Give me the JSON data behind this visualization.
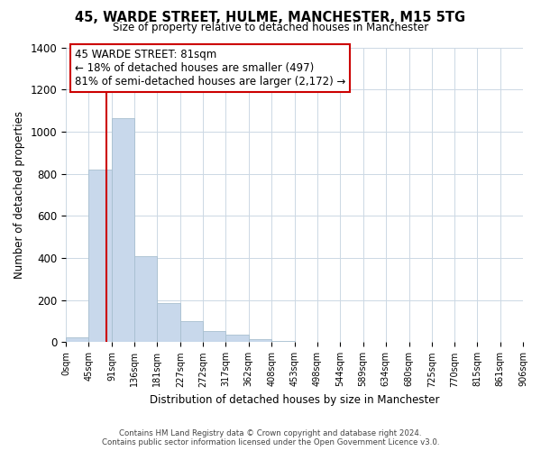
{
  "title": "45, WARDE STREET, HULME, MANCHESTER, M15 5TG",
  "subtitle": "Size of property relative to detached houses in Manchester",
  "xlabel": "Distribution of detached houses by size in Manchester",
  "ylabel": "Number of detached properties",
  "bar_color": "#c8d8eb",
  "bar_edge_color": "#a8bfd0",
  "vline_x": 81,
  "vline_color": "#cc0000",
  "annotation_title": "45 WARDE STREET: 81sqm",
  "annotation_line1": "← 18% of detached houses are smaller (497)",
  "annotation_line2": "81% of semi-detached houses are larger (2,172) →",
  "annotation_box_color": "#ffffff",
  "annotation_box_edge": "#cc0000",
  "bins": [
    0,
    45,
    91,
    136,
    181,
    227,
    272,
    317,
    362,
    408,
    453,
    498,
    544,
    589,
    634,
    680,
    725,
    770,
    815,
    861,
    906
  ],
  "bin_labels": [
    "0sqm",
    "45sqm",
    "91sqm",
    "136sqm",
    "181sqm",
    "227sqm",
    "272sqm",
    "317sqm",
    "362sqm",
    "408sqm",
    "453sqm",
    "498sqm",
    "544sqm",
    "589sqm",
    "634sqm",
    "680sqm",
    "725sqm",
    "770sqm",
    "815sqm",
    "861sqm",
    "906sqm"
  ],
  "bar_heights": [
    25,
    820,
    1065,
    410,
    185,
    100,
    55,
    38,
    15,
    5,
    3,
    2,
    1,
    0,
    0,
    0,
    0,
    0,
    0,
    0
  ],
  "ylim": [
    0,
    1400
  ],
  "yticks": [
    0,
    200,
    400,
    600,
    800,
    1000,
    1200,
    1400
  ],
  "footer_line1": "Contains HM Land Registry data © Crown copyright and database right 2024.",
  "footer_line2": "Contains public sector information licensed under the Open Government Licence v3.0.",
  "background_color": "#ffffff",
  "grid_color": "#ccd8e4"
}
